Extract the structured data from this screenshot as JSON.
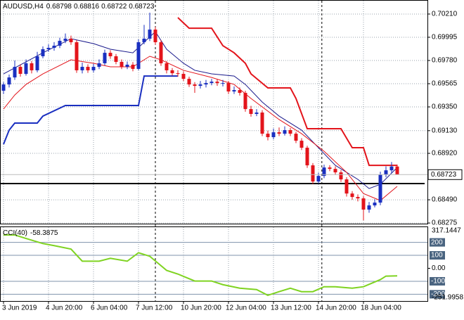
{
  "chart_data": [
    {
      "type": "candlestick",
      "symbol": "AUDUSD,H4",
      "categories": [
        "3 Jun 2019",
        null,
        null,
        null,
        null,
        null,
        null,
        null,
        "4 Jun 20:00",
        null,
        null,
        null,
        null,
        null,
        null,
        null,
        "6 Jun 04:00",
        null,
        null,
        null,
        null,
        null,
        null,
        null,
        "7 Jun 12:00",
        null,
        null,
        null,
        null,
        null,
        null,
        null,
        "10 Jun 20:00",
        null,
        null,
        null,
        null,
        null,
        null,
        null,
        "12 Jun 04:00",
        null,
        null,
        null,
        null,
        null,
        null,
        null,
        "13 Jun 12:00",
        null,
        null,
        null,
        null,
        null,
        null,
        null,
        "14 Jun 20:00",
        null,
        null,
        null,
        null,
        null,
        null,
        null,
        "18 Jun 04:00",
        null,
        null,
        null,
        null,
        null,
        null
      ],
      "open": [
        0.695,
        0.69558,
        0.69623,
        0.69721,
        0.69656,
        0.69754,
        0.69689,
        0.69819,
        0.69884,
        0.69897,
        0.69917,
        0.69962,
        0.69982,
        0.69949,
        0.69689,
        0.69721,
        0.69689,
        0.69721,
        0.69754,
        0.69851,
        0.69819,
        0.69767,
        0.69721,
        0.69741,
        0.69702,
        0.69949,
        0.69982,
        0.70066,
        0.69949,
        0.69754,
        0.69689,
        0.69662,
        0.69656,
        0.6961,
        0.69558,
        0.69545,
        0.69558,
        0.69571,
        0.69584,
        0.69571,
        0.69571,
        0.69493,
        0.69506,
        0.6948,
        0.6933,
        0.69285,
        0.69298,
        0.69102,
        0.6907,
        0.69115,
        0.69102,
        0.69135,
        0.69102,
        0.69037,
        0.68972,
        0.68809,
        0.68659,
        0.68711,
        0.68789,
        0.68776,
        0.68744,
        0.68679,
        0.68548,
        0.68516,
        0.68503,
        0.68399,
        0.68438,
        0.68464,
        0.68724,
        0.68763,
        0.68798
      ],
      "high": [
        0.6958,
        0.6965,
        0.6978,
        0.69745,
        0.6979,
        0.69775,
        0.6986,
        0.6991,
        0.6993,
        0.6995,
        0.6999,
        0.7003,
        0.7001,
        0.6997,
        0.6976,
        0.69745,
        0.6975,
        0.6979,
        0.6988,
        0.69875,
        0.6984,
        0.6979,
        0.6977,
        0.69765,
        0.69975,
        0.7011,
        0.70223,
        0.7009,
        0.6997,
        0.69775,
        0.6971,
        0.6969,
        0.6968,
        0.6963,
        0.6958,
        0.6959,
        0.696,
        0.6961,
        0.69605,
        0.696,
        0.6959,
        0.6954,
        0.6953,
        0.695,
        0.6936,
        0.6933,
        0.6932,
        0.6913,
        0.6915,
        0.6916,
        0.6917,
        0.69155,
        0.6912,
        0.6906,
        0.6899,
        0.6883,
        0.6874,
        0.68815,
        0.6881,
        0.688,
        0.68765,
        0.687,
        0.6857,
        0.6854,
        0.68525,
        0.6847,
        0.68495,
        0.6875,
        0.688,
        0.6884,
        0.68816
      ],
      "low": [
        0.6947,
        0.6953,
        0.696,
        0.6963,
        0.6964,
        0.6966,
        0.6967,
        0.698,
        0.6986,
        0.6987,
        0.69895,
        0.6994,
        0.69925,
        0.69665,
        0.6966,
        0.69665,
        0.6967,
        0.697,
        0.69735,
        0.69795,
        0.69745,
        0.697,
        0.697,
        0.6968,
        0.6969,
        0.6993,
        0.6996,
        0.69925,
        0.6973,
        0.6966,
        0.6964,
        0.6963,
        0.6959,
        0.69535,
        0.6948,
        0.6952,
        0.6953,
        0.6955,
        0.69545,
        0.6954,
        0.6947,
        0.6947,
        0.69455,
        0.69305,
        0.6926,
        0.69265,
        0.6908,
        0.6904,
        0.6905,
        0.6908,
        0.69085,
        0.6908,
        0.69015,
        0.6895,
        0.68785,
        0.68635,
        0.6864,
        0.6869,
        0.68755,
        0.6872,
        0.68655,
        0.6852,
        0.6849,
        0.68475,
        0.683,
        0.6837,
        0.6842,
        0.6844,
        0.687,
        0.6874,
        0.68722
      ],
      "close": [
        0.69558,
        0.69623,
        0.69721,
        0.69656,
        0.69754,
        0.69689,
        0.69819,
        0.69884,
        0.69897,
        0.69917,
        0.69962,
        0.69982,
        0.69949,
        0.69689,
        0.69721,
        0.69689,
        0.69721,
        0.69754,
        0.69851,
        0.69819,
        0.69767,
        0.69721,
        0.69741,
        0.69702,
        0.69949,
        0.69982,
        0.70066,
        0.69949,
        0.69754,
        0.69689,
        0.69662,
        0.69656,
        0.6961,
        0.69558,
        0.69545,
        0.69558,
        0.69571,
        0.69584,
        0.69571,
        0.69571,
        0.69493,
        0.69506,
        0.6948,
        0.6933,
        0.69285,
        0.69298,
        0.69102,
        0.6907,
        0.69115,
        0.69102,
        0.69135,
        0.69102,
        0.69037,
        0.68972,
        0.68809,
        0.68659,
        0.68711,
        0.68789,
        0.68776,
        0.68744,
        0.68679,
        0.68548,
        0.68516,
        0.68503,
        0.68399,
        0.68438,
        0.68464,
        0.68724,
        0.68763,
        0.68798,
        0.68723
      ],
      "up_color": "#1a2fc0",
      "down_color": "#e3141b",
      "ylim": [
        0.68269,
        0.7034
      ],
      "yticks": [
        {
          "value": 0.7021,
          "label": "0.70210"
        },
        {
          "value": 0.69995,
          "label": "0.69995"
        },
        {
          "value": 0.6978,
          "label": "0.69780"
        },
        {
          "value": 0.69565,
          "label": "0.69565"
        },
        {
          "value": 0.6935,
          "label": "0.69350"
        },
        {
          "value": 0.6913,
          "label": "0.69130"
        },
        {
          "value": 0.6892,
          "label": "0.68920"
        },
        {
          "value": 0.6849,
          "label": "0.68490"
        },
        {
          "value": 0.68275,
          "label": "0.68275"
        }
      ],
      "grid": true,
      "lines": [
        {
          "color": "#1a1a8c",
          "x": [
            0,
            7,
            12,
            16,
            19,
            23,
            25,
            27,
            29,
            32,
            34,
            37,
            41,
            43,
            46,
            49,
            53,
            56,
            59,
            63,
            65,
            67,
            70
          ],
          "values": [
            0.69656,
            0.69851,
            0.69982,
            0.69936,
            0.69884,
            0.69851,
            0.69949,
            0.70047,
            0.69884,
            0.69754,
            0.69689,
            0.69656,
            0.69636,
            0.69558,
            0.69395,
            0.69265,
            0.69135,
            0.68972,
            0.68809,
            0.68679,
            0.68594,
            0.68633,
            0.68789
          ]
        },
        {
          "color": "#e3141b",
          "x": [
            0,
            2,
            4,
            7,
            12,
            16,
            19,
            23,
            26,
            28,
            32,
            37,
            41,
            44,
            49,
            53,
            57,
            61,
            64,
            67,
            70
          ],
          "values": [
            0.6933,
            0.6946,
            0.69558,
            0.69656,
            0.69786,
            0.69754,
            0.69721,
            0.69721,
            0.69819,
            0.69786,
            0.69689,
            0.69623,
            0.69558,
            0.69428,
            0.69233,
            0.69102,
            0.68939,
            0.68744,
            0.68548,
            0.68483,
            0.68614
          ]
        },
        {
          "color": "#e3141b",
          "x": [
            31,
            33,
            37,
            39,
            41,
            43,
            44,
            47,
            51,
            52,
            54,
            60,
            62,
            64,
            65,
            70
          ],
          "values": [
            0.70177,
            0.70079,
            0.70079,
            0.69917,
            0.69851,
            0.69754,
            0.69656,
            0.69526,
            0.69526,
            0.69428,
            0.69148,
            0.69148,
            0.68972,
            0.68972,
            0.68809,
            0.68809
          ]
        },
        {
          "color": "#1a2fc0",
          "x": [
            0,
            1,
            2,
            6,
            7,
            11,
            24,
            25,
            31
          ],
          "values": [
            0.69004,
            0.69135,
            0.692,
            0.692,
            0.69265,
            0.69363,
            0.69363,
            0.69636,
            0.69636
          ]
        }
      ],
      "hline": 0.6864,
      "vlines": [
        27,
        56.6
      ]
    },
    {
      "type": "line",
      "title": "CCI(40)",
      "ylim": [
        -251.9958,
        317.1447
      ],
      "yticks": [
        200,
        100,
        {
          "value": 0,
          "label": "0.00"
        },
        -100,
        -200
      ],
      "series": [
        {
          "color": "#7fd321",
          "x": [
            0,
            2,
            4,
            7,
            9,
            12,
            14,
            17,
            19,
            22,
            24,
            26,
            29,
            31,
            34,
            37,
            39,
            42,
            45,
            47,
            49,
            51,
            53,
            55,
            57,
            59,
            62,
            64,
            67,
            68,
            70
          ],
          "values": [
            257,
            257,
            230,
            191,
            175,
            148,
            55,
            55,
            77,
            55,
            120,
            93,
            -16,
            -44,
            -98,
            -98,
            -126,
            -153,
            -164,
            -208,
            -180,
            -153,
            -180,
            -180,
            -142,
            -142,
            -153,
            -142,
            -87,
            -60,
            -58.3875
          ]
        }
      ]
    }
  ]
}
